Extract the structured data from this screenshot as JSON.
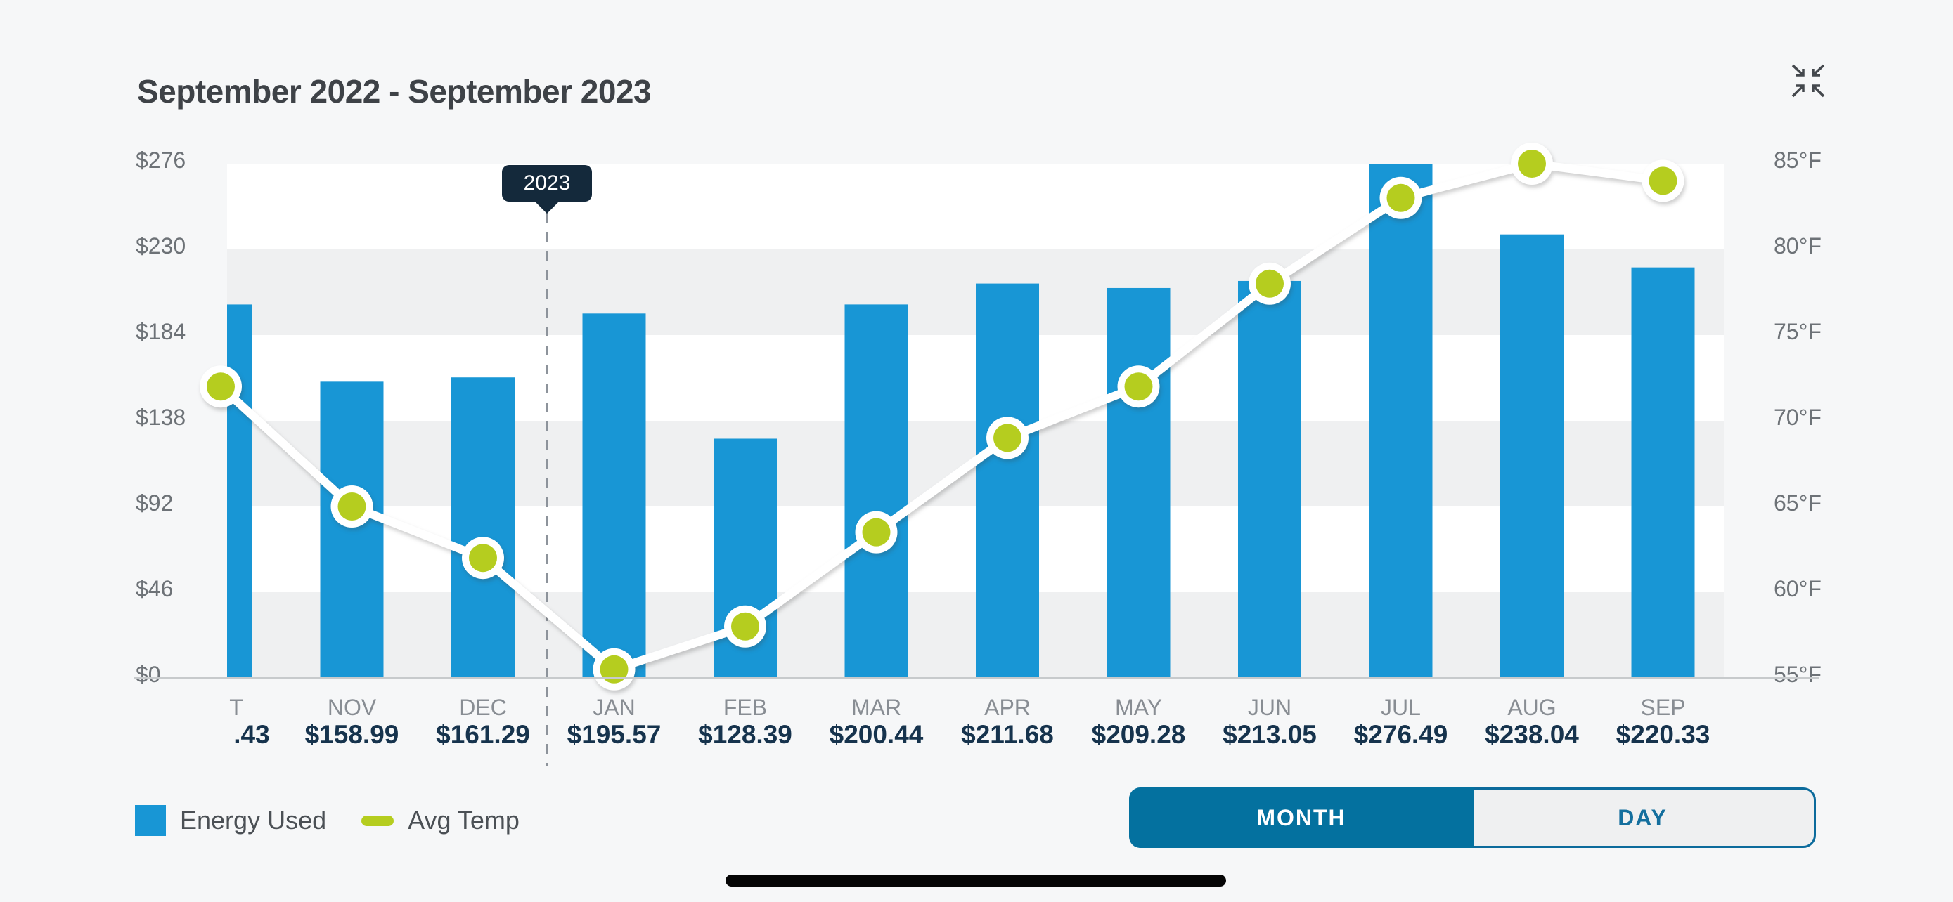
{
  "header": {
    "title": "September 2022 - September 2023"
  },
  "chart_data": {
    "type": "bar+line",
    "title": "September 2022 - September 2023",
    "x_labels_visible": [
      "T",
      "NOV",
      "DEC",
      "JAN",
      "FEB",
      "MAR",
      "APR",
      "MAY",
      "JUN",
      "JUL",
      "AUG",
      "SEP"
    ],
    "bar_value_labels_visible": [
      ".43",
      "$158.99",
      "$161.29",
      "$195.57",
      "$128.39",
      "$200.44",
      "$211.68",
      "$209.28",
      "$213.05",
      "$276.49",
      "$238.04",
      "$220.33"
    ],
    "series": [
      {
        "name": "Energy Used",
        "type": "bar",
        "unit": "USD",
        "color": "#1896d5",
        "values": [
          200.43,
          158.99,
          161.29,
          195.57,
          128.39,
          200.44,
          211.68,
          209.28,
          213.05,
          276.49,
          238.04,
          220.33
        ]
      },
      {
        "name": "Avg Temp",
        "type": "line",
        "unit": "°F",
        "color": "#b5cd1f",
        "line_color": "#ffffff",
        "values": [
          72,
          65,
          62,
          55.5,
          58,
          63.5,
          69,
          72,
          78,
          83,
          85,
          84
        ]
      }
    ],
    "left_axis": {
      "ticks": [
        "$276",
        "$230",
        "$184",
        "$138",
        "$92",
        "$46",
        "$0"
      ],
      "range": [
        0,
        276
      ]
    },
    "right_axis": {
      "ticks": [
        "85°F",
        "80°F",
        "75°F",
        "70°F",
        "65°F",
        "60°F",
        "55°F"
      ],
      "range": [
        55,
        85
      ]
    },
    "year_marker": {
      "label": "2023"
    },
    "band_colors": [
      "#ffffff",
      "#eff0f1"
    ]
  },
  "legend": {
    "energy_label": "Energy Used",
    "temp_label": "Avg Temp"
  },
  "toggle": {
    "month_label": "MONTH",
    "day_label": "DAY",
    "selected": "MONTH"
  },
  "colors": {
    "background": "#f6f7f8",
    "bar": "#1896d5",
    "temp_dot": "#b5cd1f",
    "toggle_selected": "#04719f",
    "tooltip_bg": "#14293b",
    "value_text": "#16334d"
  }
}
